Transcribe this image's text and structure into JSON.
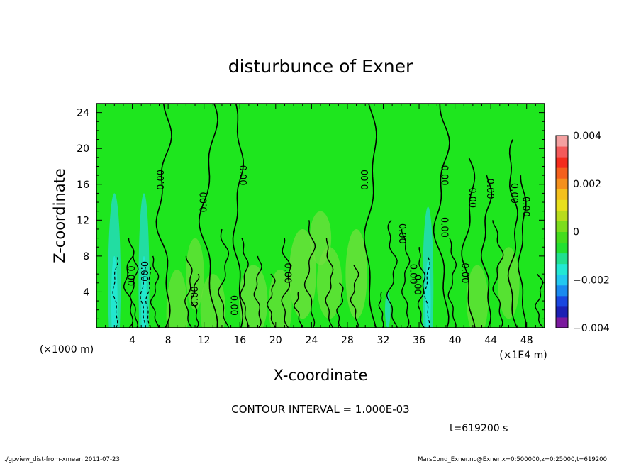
{
  "chart_data": {
    "type": "heatmap",
    "title": "disturbunce of Exner",
    "xlabel": "X-coordinate",
    "ylabel": "Z-coordinate",
    "x_unit": "(×1E4 m)",
    "y_unit": "(×1000 m)",
    "xlim": [
      0,
      50
    ],
    "ylim": [
      0,
      25
    ],
    "x_ticks": [
      "4",
      "8",
      "12",
      "16",
      "20",
      "24",
      "28",
      "32",
      "36",
      "40",
      "44",
      "48"
    ],
    "y_ticks": [
      "4",
      "8",
      "12",
      "16",
      "20",
      "24"
    ],
    "colorbar": {
      "ticks": [
        "0.004",
        "0.002",
        "0",
        "−0.002",
        "−0.004"
      ],
      "range": [
        -0.004,
        0.004
      ],
      "colors": [
        "#7b1a9e",
        "#1c20b4",
        "#1a47e0",
        "#1a8af0",
        "#22c8f0",
        "#22e8d4",
        "#20e090",
        "#22e030",
        "#44dc1c",
        "#7cdc1c",
        "#b8dc1c",
        "#e8e01c",
        "#f4c01c",
        "#f4901c",
        "#f4601c",
        "#f42c1c",
        "#f45a5a",
        "#f4a0a0"
      ]
    },
    "contour_interval": "CONTOUR INTERVAL = 1.000E-03",
    "contour_labels": [
      "0.00"
    ],
    "time_label": "t=619200 s",
    "background_color": "#1ee61e"
  },
  "footer": {
    "left": "./gpview_dist-from-xmean  2011-07-23",
    "right": "MarsCond_Exner.nc@Exner,x=0:500000,z=0:25000,t=619200"
  }
}
